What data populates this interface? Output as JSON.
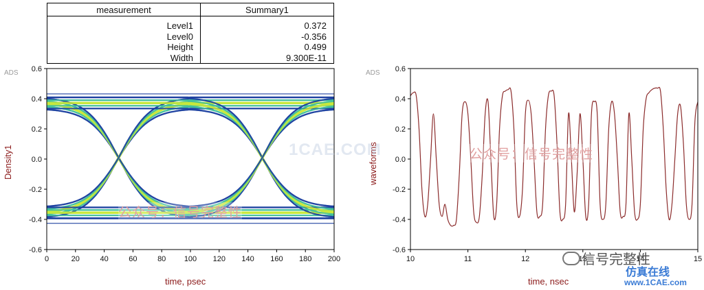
{
  "measurement_table": {
    "headers": [
      "measurement",
      "Summary1"
    ],
    "rows": [
      {
        "name": "Level1",
        "value": "0.372"
      },
      {
        "name": "Level0",
        "value": "-0.356"
      },
      {
        "name": "Height",
        "value": "0.499"
      },
      {
        "name": "Width",
        "value": "9.300E-11"
      }
    ]
  },
  "colors": {
    "label": "#8b1a1a",
    "waveform": "#8b2b2b",
    "eye_center": "#c8e83a",
    "eye_edge": "#1b3fa0"
  },
  "chart_data": [
    {
      "type": "heatmap",
      "title": "",
      "tag": "ADS",
      "xlabel": "time, psec",
      "ylabel": "Density1",
      "xlim": [
        0,
        200
      ],
      "ylim": [
        -0.6,
        0.6
      ],
      "x_ticks": [
        0,
        20,
        40,
        60,
        80,
        100,
        120,
        140,
        160,
        180,
        200
      ],
      "y_ticks": [
        -0.6,
        -0.4,
        -0.2,
        0.0,
        0.2,
        0.4,
        0.6
      ],
      "x_tick_labels": [
        "0",
        "20",
        "40",
        "60",
        "80",
        "100",
        "120",
        "140",
        "160",
        "180",
        "200"
      ],
      "y_tick_labels": [
        "-0.6",
        "-0.4",
        "-0.2",
        "0.0",
        "0.2",
        "0.4",
        "0.6"
      ],
      "eye": {
        "level1": 0.372,
        "level0": -0.356,
        "crossings": [
          50,
          150
        ],
        "crossing_level": 0.0
      }
    },
    {
      "type": "line",
      "title": "",
      "tag": "ADS",
      "xlabel": "time, nsec",
      "ylabel": "waveforms",
      "xlim": [
        10,
        15
      ],
      "ylim": [
        -0.6,
        0.6
      ],
      "x_ticks": [
        10,
        11,
        12,
        13,
        14,
        15
      ],
      "y_ticks": [
        -0.6,
        -0.4,
        -0.2,
        0.0,
        0.2,
        0.4,
        0.6
      ],
      "x_tick_labels": [
        "10",
        "11",
        "12",
        "13",
        "14",
        "15"
      ],
      "y_tick_labels": [
        "-0.6",
        "-0.4",
        "-0.2",
        "0.0",
        "0.2",
        "0.4",
        "0.6"
      ],
      "series": [
        {
          "x": [
            10.0,
            10.05,
            10.1,
            10.15,
            10.2,
            10.25,
            10.3,
            10.35,
            10.4,
            10.45,
            10.5,
            10.55,
            10.6,
            10.65,
            10.7,
            10.75,
            10.8,
            10.85,
            10.9,
            10.95,
            11.0,
            11.05,
            11.1,
            11.15,
            11.2,
            11.25,
            11.3,
            11.35,
            11.4,
            11.45,
            11.5,
            11.55,
            11.6,
            11.65,
            11.7,
            11.75,
            11.8,
            11.85,
            11.9,
            11.95,
            12.0,
            12.05,
            12.1,
            12.15,
            12.2,
            12.25,
            12.3,
            12.35,
            12.4,
            12.45,
            12.5,
            12.55,
            12.6,
            12.65,
            12.7,
            12.75,
            12.8,
            12.85,
            12.9,
            12.95,
            13.0,
            13.05,
            13.1,
            13.15,
            13.2,
            13.25,
            13.3,
            13.35,
            13.4,
            13.45,
            13.5,
            13.55,
            13.6,
            13.65,
            13.7,
            13.75,
            13.8,
            13.85,
            13.9,
            13.95,
            14.0,
            14.05,
            14.1,
            14.15,
            14.2,
            14.25,
            14.3,
            14.35,
            14.4,
            14.45,
            14.5,
            14.55,
            14.6,
            14.65,
            14.7,
            14.75,
            14.8,
            14.85,
            14.9,
            14.95,
            15.0
          ],
          "y": [
            0.42,
            0.44,
            0.42,
            0.2,
            -0.2,
            -0.38,
            -0.3,
            0.0,
            0.3,
            0.0,
            -0.3,
            -0.38,
            -0.3,
            -0.4,
            -0.44,
            -0.44,
            -0.4,
            -0.1,
            0.3,
            0.38,
            0.3,
            0.0,
            -0.35,
            -0.42,
            -0.38,
            -0.1,
            0.3,
            0.38,
            0.0,
            -0.38,
            -0.3,
            0.2,
            0.42,
            0.45,
            0.46,
            0.45,
            0.2,
            -0.3,
            -0.38,
            -0.2,
            0.3,
            0.39,
            0.3,
            0.0,
            -0.35,
            -0.38,
            -0.3,
            0.2,
            0.42,
            0.45,
            0.42,
            0.1,
            -0.35,
            -0.4,
            -0.3,
            0.3,
            0.0,
            -0.35,
            -0.1,
            0.3,
            0.0,
            -0.38,
            -0.3,
            0.3,
            0.38,
            0.3,
            -0.3,
            -0.4,
            -0.3,
            0.2,
            0.38,
            0.3,
            0.0,
            -0.35,
            -0.38,
            -0.3,
            0.3,
            0.0,
            -0.35,
            -0.4,
            -0.3,
            0.2,
            0.4,
            0.44,
            0.46,
            0.47,
            0.47,
            0.45,
            0.2,
            -0.2,
            -0.4,
            -0.3,
            0.0,
            0.3,
            0.35,
            0.1,
            -0.3,
            -0.4,
            -0.3,
            0.25,
            0.38
          ]
        }
      ]
    }
  ],
  "watermarks": {
    "left_chart": "公众号：信号完整性",
    "right_chart": "公众号：信号完整性",
    "faint_site": "1CAE.COM",
    "wechat": "信号完整性",
    "site_cn": "仿真在线",
    "site_url": "www.1CAE.com"
  }
}
